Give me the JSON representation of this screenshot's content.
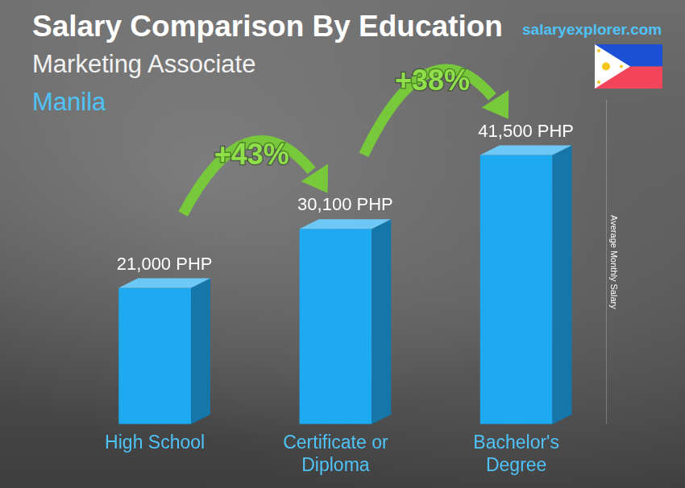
{
  "chart_data": {
    "type": "bar",
    "title": "Salary Comparison By Education",
    "subtitle": "Marketing Associate",
    "location": "Manila",
    "source": "salaryexplorer.com",
    "y_label": "Average Monthly Salary",
    "categories": [
      "High School",
      "Certificate or Diploma",
      "Bachelor's Degree"
    ],
    "values": [
      21000,
      30100,
      41500
    ],
    "value_labels": [
      "21,000 PHP",
      "30,100 PHP",
      "41,500 PHP"
    ],
    "data_labels": true,
    "color": "#1eaaf1",
    "ylim": [
      0,
      50000
    ],
    "grid": false,
    "tick_labels": "x",
    "annotations": [
      {
        "text": "+43%",
        "from": "High School",
        "to": "Certificate or Diploma"
      },
      {
        "text": "+38%",
        "from": "Certificate or Diploma",
        "to": "Bachelor's Degree"
      }
    ]
  }
}
